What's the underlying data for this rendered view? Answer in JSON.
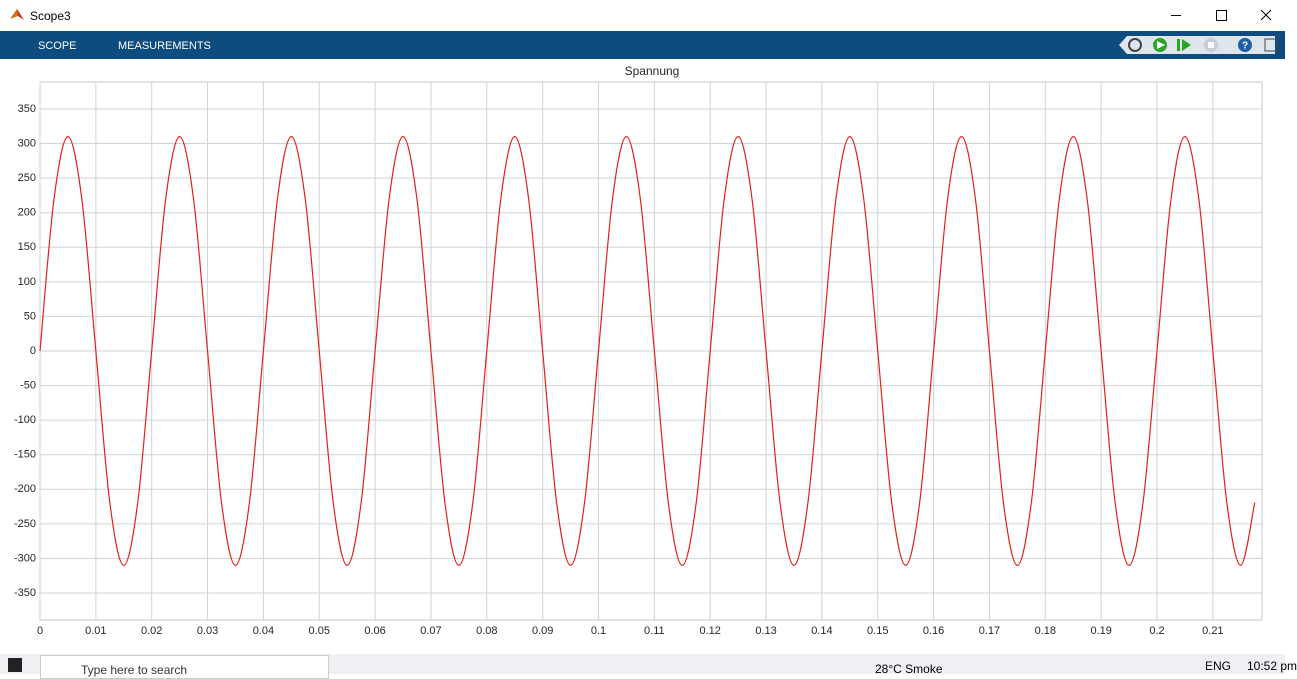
{
  "window": {
    "title": "Scope3"
  },
  "toolstrip": {
    "tabs": [
      "SCOPE",
      "MEASUREMENTS"
    ]
  },
  "chart_data": {
    "type": "line",
    "title": "Spannung",
    "x": [
      0,
      0.0025,
      0.005,
      0.0075,
      0.01,
      0.0125,
      0.015,
      0.0175,
      0.02,
      0.0225,
      0.025,
      0.0275,
      0.03,
      0.0325,
      0.035,
      0.0375,
      0.04,
      0.0425,
      0.045,
      0.0475,
      0.05,
      0.0525,
      0.055,
      0.0575,
      0.06,
      0.0625,
      0.065,
      0.0675,
      0.07,
      0.0725,
      0.075,
      0.0775,
      0.08,
      0.0825,
      0.085,
      0.0875,
      0.09,
      0.0925,
      0.095,
      0.0975,
      0.1,
      0.1025,
      0.105,
      0.1075,
      0.11,
      0.1125,
      0.115,
      0.1175,
      0.12,
      0.1225,
      0.125,
      0.1275,
      0.13,
      0.1325,
      0.135,
      0.1375,
      0.14,
      0.1425,
      0.145,
      0.1475,
      0.15,
      0.1525,
      0.155,
      0.1575,
      0.16,
      0.1625,
      0.165,
      0.1675,
      0.17,
      0.1725,
      0.175,
      0.1775,
      0.18,
      0.1825,
      0.185,
      0.1875,
      0.19,
      0.1925,
      0.195,
      0.1975,
      0.2,
      0.2025,
      0.205,
      0.2075,
      0.21,
      0.2125,
      0.215,
      0.2175
    ],
    "series": [
      {
        "color": "#e3201b",
        "values": [
          0,
          219.2,
          310,
          219.2,
          0,
          -219.2,
          -310,
          -219.2,
          0,
          219.2,
          310,
          219.2,
          0,
          -219.2,
          -310,
          -219.2,
          0,
          219.2,
          310,
          219.2,
          0,
          -219.2,
          -310,
          -219.2,
          0,
          219.2,
          310,
          219.2,
          0,
          -219.2,
          -310,
          -219.2,
          0,
          219.2,
          310,
          219.2,
          0,
          -219.2,
          -310,
          -219.2,
          0,
          219.2,
          310,
          219.2,
          0,
          -219.2,
          -310,
          -219.2,
          0,
          219.2,
          310,
          219.2,
          0,
          -219.2,
          -310,
          -219.2,
          0,
          219.2,
          310,
          219.2,
          0,
          -219.2,
          -310,
          -219.2,
          0,
          219.2,
          310,
          219.2,
          0,
          -219.2,
          -310,
          -219.2,
          0,
          219.2,
          310,
          219.2,
          0,
          -219.2,
          -310,
          -219.2,
          0,
          219.2,
          310,
          219.2,
          0,
          -219.2,
          -310,
          -219.2
        ]
      }
    ],
    "xlim": [
      0,
      0.2188
    ],
    "ylim": [
      -389,
      389
    ],
    "xticks": [
      0,
      0.01,
      0.02,
      0.03,
      0.04,
      0.05,
      0.06,
      0.07,
      0.08,
      0.09,
      0.1,
      0.11,
      0.12,
      0.13,
      0.14,
      0.15,
      0.16,
      0.17,
      0.18,
      0.19,
      0.2,
      0.21
    ],
    "yticks": [
      -350,
      -300,
      -250,
      -200,
      -150,
      -100,
      -50,
      0,
      50,
      100,
      150,
      200,
      250,
      300,
      350
    ],
    "grid": true
  },
  "taskbar": {
    "search": "Type here to search",
    "weather": "28°C  Smoke",
    "language": "ENG",
    "time": "10:52 pm"
  }
}
